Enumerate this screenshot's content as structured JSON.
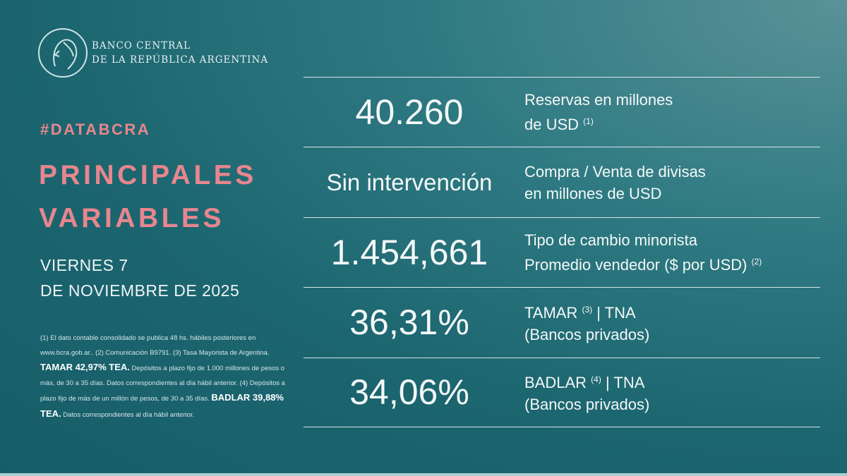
{
  "logo": {
    "line1": "BANCO CENTRAL",
    "line2": "DE LA REPÚBLICA ARGENTINA"
  },
  "hashtag": "#DATABCRA",
  "title": {
    "line1": "PRINCIPALES",
    "line2": "VARIABLES"
  },
  "date": {
    "line1": "VIERNES 7",
    "line2": "DE NOVIEMBRE DE 2025"
  },
  "notes": {
    "p1": "(1) El dato contable consolidado se publica 48 hs. hábiles posteriores en www.bcra.gob.ar.. (2) Comunicación B9791. (3) Tasa Mayorista de Argentina. ",
    "b1": "TAMAR 42,97% TEA.",
    "p2": " Depósitos a plazo fijo de 1.000 millones de pesos o más, de 30 a 35 días. Datos correspondientes al día hábil anterior. (4) Depósitos a plazo fijo de más de un millón de pesos, de 30 a 35 días. ",
    "b2": "BADLAR 39,88% TEA.",
    "p3": " Datos correspondientes al día hábil anterior."
  },
  "rows": [
    {
      "value": "40.260",
      "label1": "Reservas en millones",
      "label2": "de USD",
      "sup2": "(1)"
    },
    {
      "value": "Sin intervención",
      "label1": "Compra / Venta de divisas",
      "label2": "en millones de USD"
    },
    {
      "value": "1.454,661",
      "label1": "Tipo de cambio minorista",
      "label2": "Promedio vendedor ($ por USD)",
      "sup2": "(2)"
    },
    {
      "value": "36,31%",
      "label1": "TAMAR",
      "sup1": "(3)",
      "label1b": "| TNA",
      "label2": "(Bancos privados)"
    },
    {
      "value": "34,06%",
      "label1": "BADLAR",
      "sup1": "(4)",
      "label1b": "| TNA",
      "label2": "(Bancos privados)"
    }
  ]
}
